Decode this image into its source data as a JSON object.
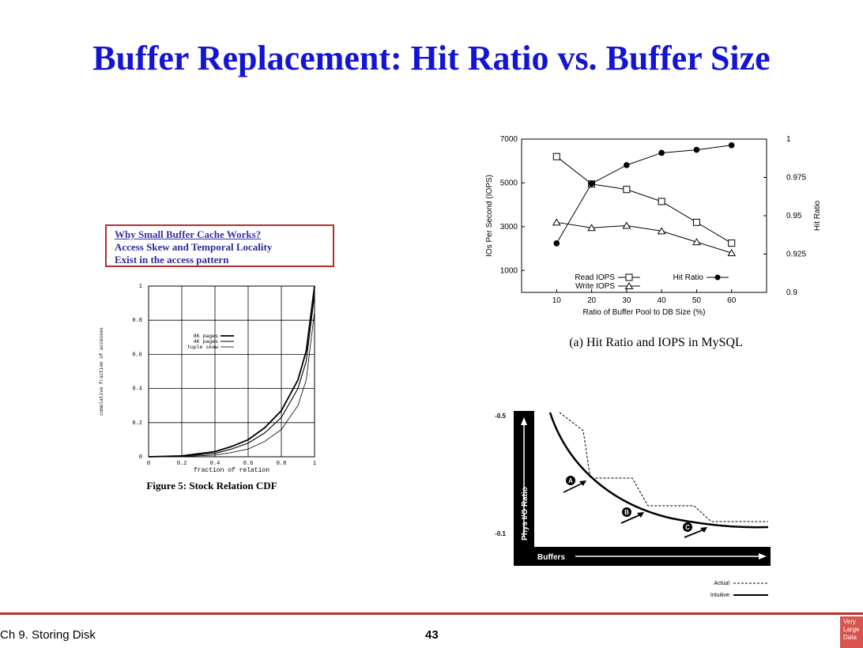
{
  "slide": {
    "title": "Buffer Replacement: Hit Ratio vs. Buffer Size",
    "footer_left": "Ch 9. Storing Disk",
    "page_number": "43",
    "logo_text": [
      "Very",
      "Large",
      "Data"
    ]
  },
  "note_box": {
    "line1": "Why Small Buffer Cache Works?",
    "line2": "Access Skew and Temporal Locality",
    "line3": "Exist in the access pattern"
  },
  "chart_data": [
    {
      "type": "line",
      "caption": "Figure 5: Stock Relation CDF",
      "xlabel": "fraction of relation",
      "ylabel": "cumulative fraction of accesses",
      "xlim": [
        0,
        1
      ],
      "ylim": [
        0,
        1
      ],
      "x_ticks": [
        "0",
        "0.2",
        "0.4",
        "0.6",
        "0.8",
        "1"
      ],
      "y_ticks": [
        "0",
        "0.2",
        "0.4",
        "0.6",
        "0.8",
        "1"
      ],
      "grid": true,
      "legend_position": "upper-middle",
      "series": [
        {
          "name": "8K pages",
          "x": [
            0,
            0.2,
            0.4,
            0.5,
            0.6,
            0.7,
            0.8,
            0.9,
            0.95,
            1
          ],
          "y": [
            0,
            0.005,
            0.03,
            0.06,
            0.1,
            0.17,
            0.27,
            0.45,
            0.62,
            1
          ]
        },
        {
          "name": "4K pages",
          "x": [
            0,
            0.2,
            0.4,
            0.5,
            0.6,
            0.7,
            0.8,
            0.9,
            0.95,
            1
          ],
          "y": [
            0,
            0.003,
            0.02,
            0.045,
            0.08,
            0.14,
            0.23,
            0.4,
            0.56,
            0.95
          ]
        },
        {
          "name": "tuple skew",
          "x": [
            0,
            0.2,
            0.4,
            0.5,
            0.6,
            0.7,
            0.8,
            0.9,
            0.95,
            1
          ],
          "y": [
            0,
            0.001,
            0.01,
            0.025,
            0.045,
            0.09,
            0.16,
            0.3,
            0.45,
            0.85
          ]
        }
      ]
    },
    {
      "type": "line",
      "caption": "(a)  Hit Ratio and IOPS in MySQL",
      "xlabel": "Ratio of Buffer Pool to DB Size (%)",
      "ylabel": "IOs Per Second (IOPS)",
      "y2label": "Hit Ratio",
      "x": [
        10,
        20,
        30,
        40,
        50,
        60
      ],
      "ylim": [
        0,
        7000
      ],
      "y_ticks": [
        1000,
        3000,
        5000,
        7000
      ],
      "y2lim": [
        0.9,
        1
      ],
      "y2_ticks": [
        "0.9",
        "0.925",
        "0.95",
        "0.975",
        "1"
      ],
      "series": [
        {
          "name": "Read IOPS",
          "axis": "left",
          "marker": "square",
          "values": [
            6200,
            4950,
            4700,
            4150,
            3200,
            2250
          ]
        },
        {
          "name": "Write IOPS",
          "axis": "left",
          "marker": "triangle",
          "values": [
            3200,
            2950,
            3050,
            2800,
            2300,
            1800
          ]
        },
        {
          "name": "Hit Ratio",
          "axis": "right",
          "marker": "circle",
          "values": [
            0.932,
            0.971,
            0.983,
            0.991,
            0.993,
            0.996
          ]
        }
      ]
    },
    {
      "type": "line",
      "xlabel": "Buffers",
      "ylabel": "Phys I/O Ratio",
      "y_ticks": [
        "-0.5",
        "-0.1"
      ],
      "legend": [
        "Actual",
        "Intuitive"
      ],
      "markers": [
        "A",
        "B",
        "C"
      ],
      "series": [
        {
          "name": "Actual",
          "style": "dashed-step"
        },
        {
          "name": "Intuitive",
          "style": "solid-curve"
        }
      ]
    }
  ]
}
